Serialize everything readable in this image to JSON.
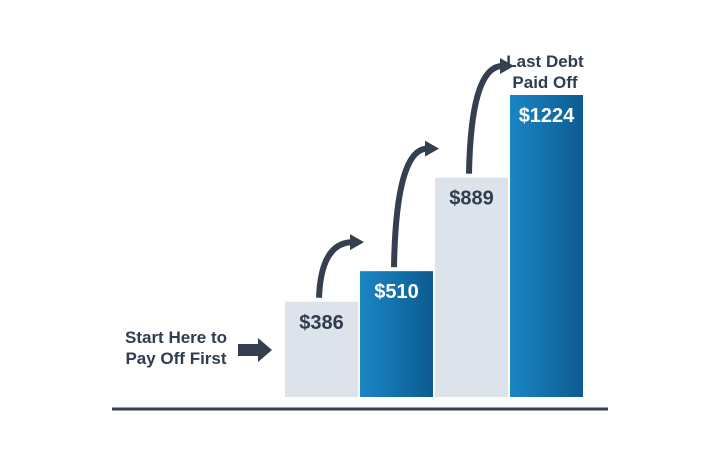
{
  "chart_data": {
    "type": "bar",
    "categories": [
      "$386",
      "$510",
      "$889",
      "$1224"
    ],
    "values": [
      386,
      510,
      889,
      1224
    ],
    "data_labels": [
      "$386",
      "$510",
      "$889",
      "$1224"
    ],
    "bar_styles": [
      "light",
      "blue",
      "light",
      "blue"
    ],
    "ylim": [
      0,
      1224
    ],
    "grid": false,
    "legend": "none",
    "annotations": {
      "start_text": [
        "Start Here to",
        "Pay Off First"
      ],
      "end_text": [
        "Last Debt",
        "Paid Off"
      ]
    }
  },
  "colors": {
    "light_bar": "#dde3ea",
    "blue_bar_top": "#1a86c4",
    "blue_bar_bottom": "#0d5b91",
    "text_dark": "#2f3d4f",
    "text_light": "#ffffff",
    "arrow": "#34404f",
    "baseline": "#34404f"
  }
}
